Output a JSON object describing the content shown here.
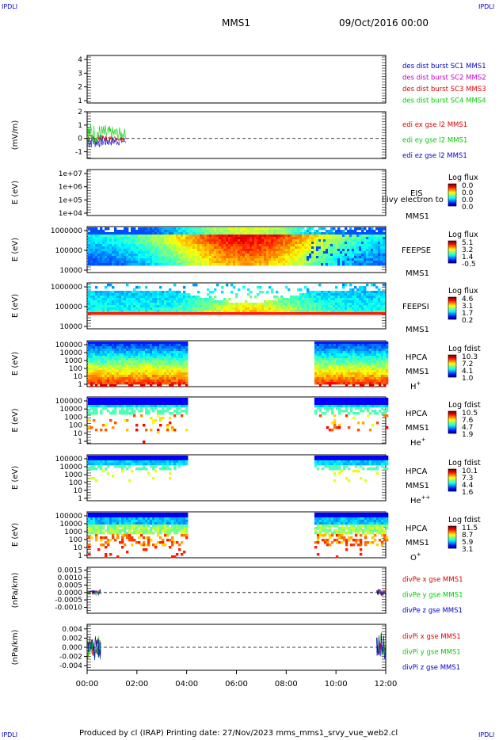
{
  "corners": {
    "top_left": "IPDLI",
    "top_right": "IPDLI",
    "bottom_left": "IPDLI",
    "bottom_right": "IPDLI"
  },
  "header": {
    "spacecraft": "MMS1",
    "date": "09/Oct/2016 00:00"
  },
  "footer": "Produced by cl (IRAP)    Printing date: 27/Nov/2023    mms_mms1_srvy_vue_web2.cl",
  "colors": {
    "red": "#dd0000",
    "green": "#00cc00",
    "blue": "#0000cc",
    "magenta": "#cc00cc",
    "dash": "#000000"
  },
  "chart_data": [
    {
      "type": "line",
      "id": "des-dist",
      "yticks": [
        "4",
        "3",
        "2",
        "1"
      ],
      "legend": [
        {
          "text": "des dist burst SC1 MMS1",
          "color": "#0000cc"
        },
        {
          "text": "des dist burst SC2 MMS2",
          "color": "#cc00cc"
        },
        {
          "text": "des dist burst SC3 MMS3",
          "color": "#dd0000"
        },
        {
          "text": "des dist burst SC4 MMS4",
          "color": "#00cc00"
        }
      ]
    },
    {
      "type": "line",
      "id": "edi-e",
      "ylabel": "(mV/m)",
      "yticks": [
        "2",
        "1",
        "0",
        "-1"
      ],
      "ylim": [
        -1.5,
        2
      ],
      "x_end_hours": 1.55,
      "legend": [
        {
          "text": "edi ex gse l2 MMS1",
          "color": "#dd0000"
        },
        {
          "text": "edi ey gse l2 MMS1",
          "color": "#00cc00"
        },
        {
          "text": "edi ez gse l2 MMS1",
          "color": "#0000cc"
        }
      ]
    },
    {
      "type": "heatmap",
      "id": "eis",
      "ylabel": "E (eV)",
      "yticks": [
        "1e+07",
        "1e+06",
        "1e+05",
        "1e+04"
      ],
      "instrument": "EIS",
      "overlay": "l ivy electron to",
      "mission": "MMS1",
      "colorbar": {
        "title": "Log flux",
        "ticks": [
          "0.0",
          "0.0",
          "0.0",
          "0.0"
        ]
      }
    },
    {
      "type": "heatmap",
      "id": "feeps-e",
      "ylabel": "E (eV)",
      "yticks": [
        "1000000",
        "100000",
        "10000"
      ],
      "instrument": "FEEPSE",
      "mission": "MMS1",
      "colorbar": {
        "title": "Log flux",
        "ticks": [
          "5.1",
          "3.2",
          "1.4",
          "-0.5"
        ]
      }
    },
    {
      "type": "heatmap",
      "id": "feeps-i",
      "ylabel": "E (eV)",
      "yticks": [
        "1000000",
        "100000",
        "10000"
      ],
      "instrument": "FEEPSI",
      "mission": "MMS1",
      "colorbar": {
        "title": "Log flux",
        "ticks": [
          "4.6",
          "3.1",
          "1.7",
          "0.2"
        ]
      }
    },
    {
      "type": "heatmap",
      "id": "hpca-h",
      "ylabel": "E (eV)",
      "yticks": [
        "100000",
        "10000",
        "1000",
        "100",
        "10",
        "1"
      ],
      "instrument": "HPCA",
      "mission": "MMS1",
      "species": "H",
      "charge": "+",
      "data_intervals_hours": [
        [
          0,
          4
        ],
        [
          9.1,
          12
        ]
      ],
      "colorbar": {
        "title": "Log fdist",
        "ticks": [
          "10.3",
          "7.2",
          "4.1",
          "1.0"
        ]
      }
    },
    {
      "type": "heatmap",
      "id": "hpca-he",
      "ylabel": "E (eV)",
      "yticks": [
        "100000",
        "10000",
        "1000",
        "100",
        "10",
        "1"
      ],
      "instrument": "HPCA",
      "mission": "MMS1",
      "species": "He",
      "charge": "+",
      "data_intervals_hours": [
        [
          0,
          4
        ],
        [
          9.1,
          12
        ]
      ],
      "colorbar": {
        "title": "Log fdist",
        "ticks": [
          "10.5",
          "7.6",
          "4.7",
          "1.9"
        ]
      }
    },
    {
      "type": "heatmap",
      "id": "hpca-hepp",
      "ylabel": "E (eV)",
      "yticks": [
        "100000",
        "10000",
        "1000",
        "100",
        "10",
        "1"
      ],
      "instrument": "HPCA",
      "mission": "MMS1",
      "species": "He",
      "charge": "++",
      "data_intervals_hours": [
        [
          0,
          4
        ],
        [
          9.1,
          12
        ]
      ],
      "colorbar": {
        "title": "Log fdist",
        "ticks": [
          "10.1",
          "7.3",
          "4.4",
          "1.6"
        ]
      }
    },
    {
      "type": "heatmap",
      "id": "hpca-o",
      "ylabel": "E (eV)",
      "yticks": [
        "100000",
        "10000",
        "1000",
        "100",
        "10",
        "1"
      ],
      "instrument": "HPCA",
      "mission": "MMS1",
      "species": "O",
      "charge": "+",
      "data_intervals_hours": [
        [
          0,
          4
        ],
        [
          9.1,
          12
        ]
      ],
      "colorbar": {
        "title": "Log fdist",
        "ticks": [
          "11.5",
          "8.7",
          "5.9",
          "3.1"
        ]
      }
    },
    {
      "type": "line",
      "id": "divpe",
      "ylabel": "(nPa/km)",
      "yticks": [
        "0.0015",
        "0.0010",
        "0.0005",
        "0.0000",
        "-0.0005",
        "-0.0010"
      ],
      "ylim": [
        -0.0014,
        0.0017
      ],
      "data_intervals_hours": [
        [
          0,
          0.55
        ],
        [
          11.6,
          12
        ]
      ],
      "legend": [
        {
          "text": "divPe x gse MMS1",
          "color": "#dd0000"
        },
        {
          "text": "divPe y gse MMS1",
          "color": "#00cc00"
        },
        {
          "text": "divPe z gse MMS1",
          "color": "#0000cc"
        }
      ]
    },
    {
      "type": "line",
      "id": "divpi",
      "ylabel": "(nPa/km)",
      "yticks": [
        "0.004",
        "0.002",
        "0.000",
        "-0.002",
        "-0.004"
      ],
      "ylim": [
        -0.005,
        0.005
      ],
      "data_intervals_hours": [
        [
          0,
          0.55
        ],
        [
          11.6,
          12
        ]
      ],
      "legend": [
        {
          "text": "divPi x gse MMS1",
          "color": "#dd0000"
        },
        {
          "text": "divPi y gse MMS1",
          "color": "#00cc00"
        },
        {
          "text": "divPi z gse MMS1",
          "color": "#0000cc"
        }
      ]
    }
  ],
  "x_axis": {
    "range_hours": [
      0,
      12
    ],
    "ticks": [
      "00:00",
      "02:00",
      "04:00",
      "06:00",
      "08:00",
      "10:00",
      "12:00"
    ]
  }
}
